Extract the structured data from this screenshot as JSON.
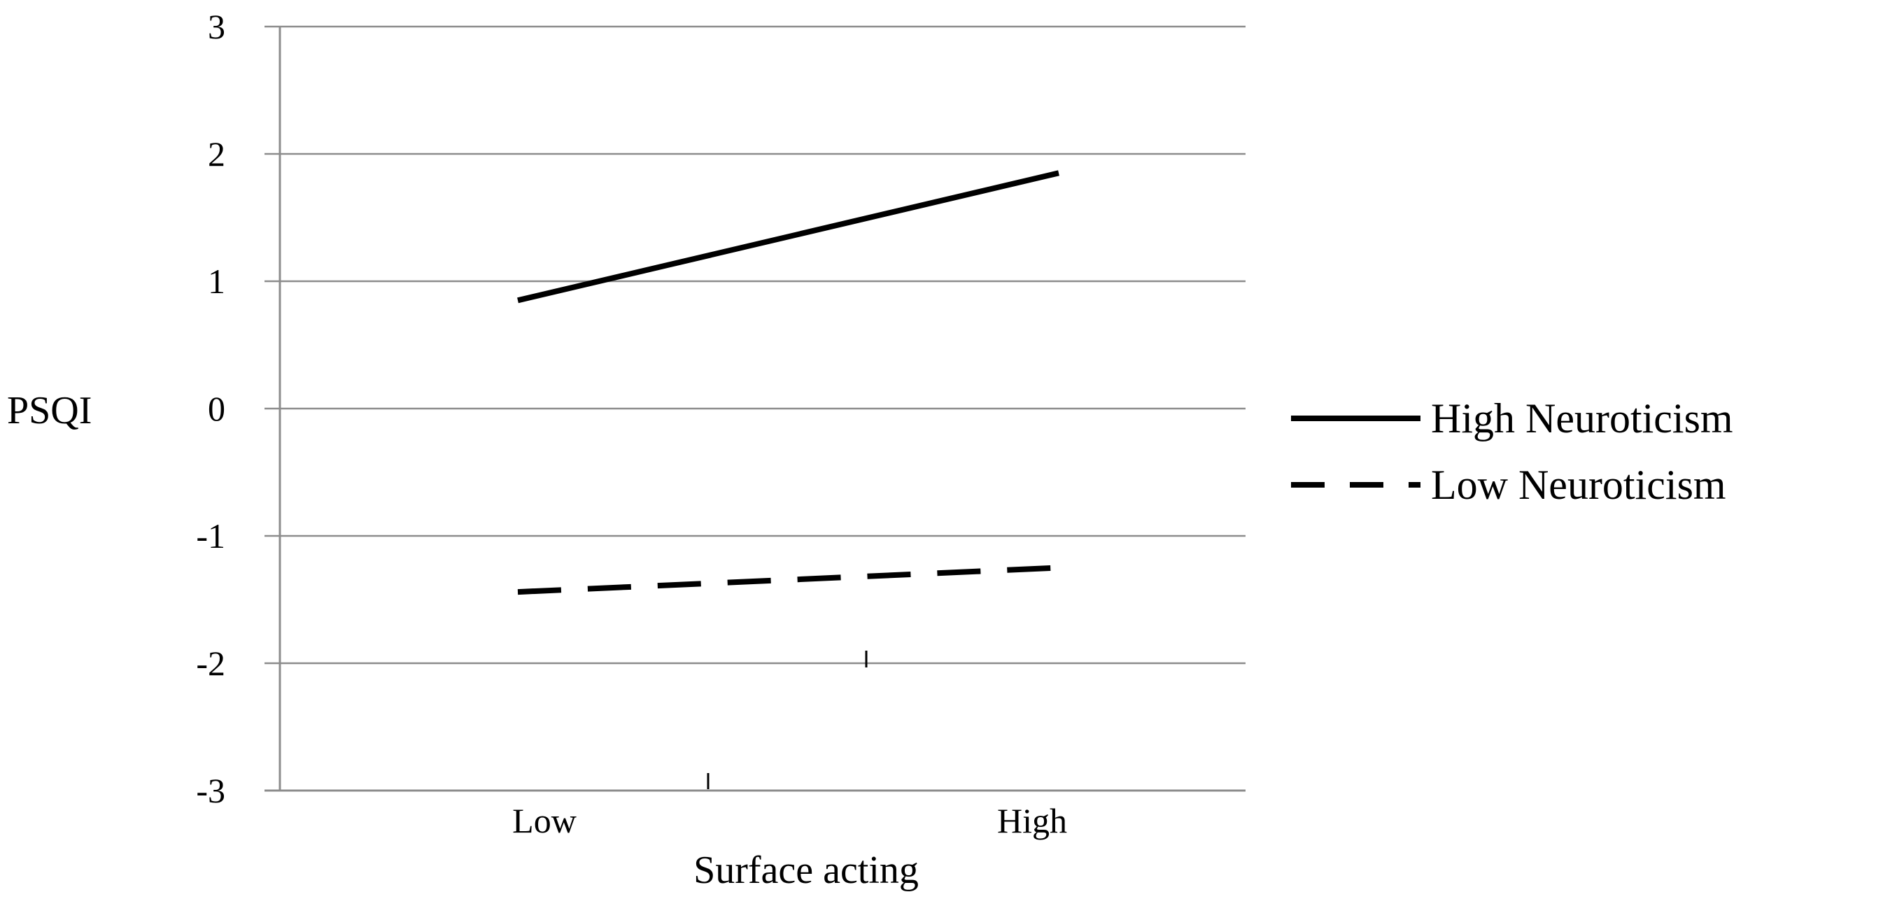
{
  "chart_data": {
    "type": "line",
    "categories": [
      "Low",
      "High"
    ],
    "xlabel": "Surface acting",
    "ylabel": "PSQI",
    "ylim": [
      -3,
      3
    ],
    "yticks": [
      3,
      2,
      1,
      0,
      -1,
      -2,
      -3
    ],
    "grid": true,
    "legend_position": "right",
    "series": [
      {
        "name": "High Neuroticism",
        "values": [
          0.85,
          1.85
        ],
        "line_style": "solid",
        "color": "#000000"
      },
      {
        "name": "Low Neuroticism",
        "values": [
          -1.44,
          -1.25
        ],
        "line_style": "dashed",
        "color": "#000000"
      }
    ]
  }
}
